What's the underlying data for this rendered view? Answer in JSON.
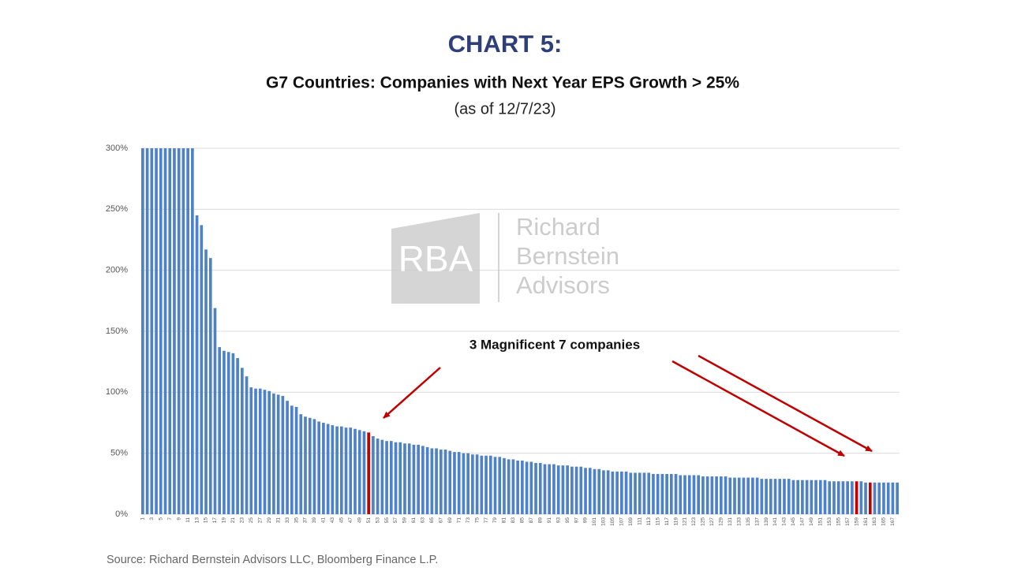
{
  "chart_data": {
    "type": "bar",
    "title": "CHART 5:",
    "subtitle": "G7 Countries: Companies with Next Year EPS Growth > 25%",
    "date_note": "(as of 12/7/23)",
    "source": "Source: Richard Bernstein Advisors LLC, Bloomberg Finance L.P.",
    "annotation": "3 Magnificent 7 companies",
    "watermark": {
      "logo": "RBA",
      "name": [
        "Richard",
        "Bernstein",
        "Advisors"
      ]
    },
    "ylim": [
      0,
      300
    ],
    "yticks": [
      {
        "value": 0,
        "label": "0%"
      },
      {
        "value": 50,
        "label": "50%"
      },
      {
        "value": 100,
        "label": "100%"
      },
      {
        "value": 150,
        "label": "150%"
      },
      {
        "value": 200,
        "label": "200%"
      },
      {
        "value": 250,
        "label": "250%"
      },
      {
        "value": 300,
        "label": "300%"
      }
    ],
    "grid": true,
    "categories": [
      "1",
      null,
      "3",
      null,
      "5",
      null,
      "7",
      null,
      "9",
      null,
      "11",
      null,
      "13",
      null,
      "15",
      null,
      "17",
      null,
      "19",
      null,
      "21",
      null,
      "23",
      null,
      "25",
      null,
      "27",
      null,
      "29",
      null,
      "31",
      null,
      "33",
      null,
      "35",
      null,
      "37",
      null,
      "39",
      null,
      "41",
      null,
      "43",
      null,
      "45",
      null,
      "47",
      null,
      "49",
      null,
      "51",
      null,
      "53",
      null,
      "55",
      null,
      "57",
      null,
      "59",
      null,
      "61",
      null,
      "63",
      null,
      "65",
      null,
      "67",
      null,
      "69",
      null,
      "71",
      null,
      "73",
      null,
      "75",
      null,
      "77",
      null,
      "79",
      null,
      "81",
      null,
      "83",
      null,
      "85",
      null,
      "87",
      null,
      "89",
      null,
      "91",
      null,
      "93",
      null,
      "95",
      null,
      "97",
      null,
      "99",
      null,
      "101",
      null,
      "103",
      null,
      "105",
      null,
      "107",
      null,
      "109",
      null,
      "111",
      null,
      "113",
      null,
      "115",
      null,
      "117",
      null,
      "119",
      null,
      "121",
      null,
      "123",
      null,
      "125",
      null,
      "127",
      null,
      "129",
      null,
      "131",
      null,
      "133",
      null,
      "135",
      null,
      "137",
      null,
      "139",
      null,
      "141",
      null,
      "143",
      null,
      "145",
      null,
      "147",
      null,
      "149",
      null,
      "151",
      null,
      "153",
      null,
      "155",
      null,
      "157",
      null,
      "159",
      null,
      "161",
      null,
      "163",
      null,
      "165",
      null,
      "167",
      null
    ],
    "values": [
      300,
      300,
      300,
      300,
      300,
      300,
      300,
      300,
      300,
      300,
      300,
      300,
      245,
      237,
      217,
      210,
      169,
      137,
      134,
      133,
      132,
      128,
      120,
      113,
      104,
      103,
      103,
      102,
      101,
      99,
      98,
      97,
      93,
      89,
      88,
      82,
      80,
      79,
      78,
      76,
      75,
      74,
      73,
      72,
      72,
      71,
      71,
      70,
      69,
      68,
      67,
      64,
      62,
      61,
      60,
      60,
      59,
      59,
      58,
      58,
      57,
      57,
      56,
      55,
      54,
      54,
      53,
      53,
      52,
      51,
      51,
      50,
      50,
      49,
      49,
      48,
      48,
      48,
      47,
      47,
      46,
      45,
      45,
      44,
      44,
      43,
      43,
      42,
      42,
      41,
      41,
      41,
      40,
      40,
      40,
      39,
      39,
      39,
      38,
      38,
      37,
      37,
      36,
      36,
      35,
      35,
      35,
      35,
      34,
      34,
      34,
      34,
      34,
      33,
      33,
      33,
      33,
      33,
      33,
      32,
      32,
      32,
      32,
      32,
      31,
      31,
      31,
      31,
      31,
      31,
      30,
      30,
      30,
      30,
      30,
      30,
      30,
      29,
      29,
      29,
      29,
      29,
      29,
      29,
      28,
      28,
      28,
      28,
      28,
      28,
      28,
      28,
      27,
      27,
      27,
      27,
      27,
      27,
      27,
      27,
      26,
      26,
      26,
      26,
      26,
      26,
      26,
      26
    ],
    "colors": [
      "#4f81c7",
      "#4f81c7",
      "#4f81c7",
      "#4f81c7",
      "#4f81c7",
      "#4f81c7",
      "#4f81c7",
      "#4f81c7",
      "#4f81c7",
      "#4f81c7",
      "#4f81c7",
      "#4f81c7",
      "#4f81c7",
      "#4f81c7",
      "#4f81c7",
      "#4f81c7",
      "#4f81c7",
      "#4f81c7",
      "#4f81c7",
      "#4f81c7",
      "#4f81c7",
      "#4f81c7",
      "#4f81c7",
      "#4f81c7",
      "#4f81c7",
      "#4f81c7",
      "#4f81c7",
      "#4f81c7",
      "#4f81c7",
      "#4f81c7",
      "#4f81c7",
      "#4f81c7",
      "#4f81c7",
      "#4f81c7",
      "#4f81c7",
      "#4f81c7",
      "#4f81c7",
      "#4f81c7",
      "#4f81c7",
      "#4f81c7",
      "#4f81c7",
      "#4f81c7",
      "#4f81c7",
      "#4f81c7",
      "#4f81c7",
      "#4f81c7",
      "#4f81c7",
      "#4f81c7",
      "#4f81c7",
      "#4f81c7",
      "#c00000",
      "#4f81c7",
      "#4f81c7",
      "#4f81c7",
      "#4f81c7",
      "#4f81c7",
      "#4f81c7",
      "#4f81c7",
      "#4f81c7",
      "#4f81c7",
      "#4f81c7",
      "#4f81c7",
      "#4f81c7",
      "#4f81c7",
      "#4f81c7",
      "#4f81c7",
      "#4f81c7",
      "#4f81c7",
      "#4f81c7",
      "#4f81c7",
      "#4f81c7",
      "#4f81c7",
      "#4f81c7",
      "#4f81c7",
      "#4f81c7",
      "#4f81c7",
      "#4f81c7",
      "#4f81c7",
      "#4f81c7",
      "#4f81c7",
      "#4f81c7",
      "#4f81c7",
      "#4f81c7",
      "#4f81c7",
      "#4f81c7",
      "#4f81c7",
      "#4f81c7",
      "#4f81c7",
      "#4f81c7",
      "#4f81c7",
      "#4f81c7",
      "#4f81c7",
      "#4f81c7",
      "#4f81c7",
      "#4f81c7",
      "#4f81c7",
      "#4f81c7",
      "#4f81c7",
      "#4f81c7",
      "#4f81c7",
      "#4f81c7",
      "#4f81c7",
      "#4f81c7",
      "#4f81c7",
      "#4f81c7",
      "#4f81c7",
      "#4f81c7",
      "#4f81c7",
      "#4f81c7",
      "#4f81c7",
      "#4f81c7",
      "#4f81c7",
      "#4f81c7",
      "#4f81c7",
      "#4f81c7",
      "#4f81c7",
      "#4f81c7",
      "#4f81c7",
      "#4f81c7",
      "#4f81c7",
      "#4f81c7",
      "#4f81c7",
      "#4f81c7",
      "#4f81c7",
      "#4f81c7",
      "#4f81c7",
      "#4f81c7",
      "#4f81c7",
      "#4f81c7",
      "#4f81c7",
      "#4f81c7",
      "#4f81c7",
      "#4f81c7",
      "#4f81c7",
      "#4f81c7",
      "#4f81c7",
      "#4f81c7",
      "#4f81c7",
      "#4f81c7",
      "#4f81c7",
      "#4f81c7",
      "#4f81c7",
      "#4f81c7",
      "#4f81c7",
      "#4f81c7",
      "#4f81c7",
      "#4f81c7",
      "#4f81c7",
      "#4f81c7",
      "#4f81c7",
      "#4f81c7",
      "#4f81c7",
      "#4f81c7",
      "#4f81c7",
      "#4f81c7",
      "#4f81c7",
      "#4f81c7",
      "#4f81c7",
      "#c00000",
      "#4f81c7",
      "#4f81c7",
      "#c00000",
      "#4f81c7",
      "#4f81c7",
      "#4f81c7",
      "#4f81c7",
      "#4f81c7",
      "#4f81c7"
    ]
  }
}
